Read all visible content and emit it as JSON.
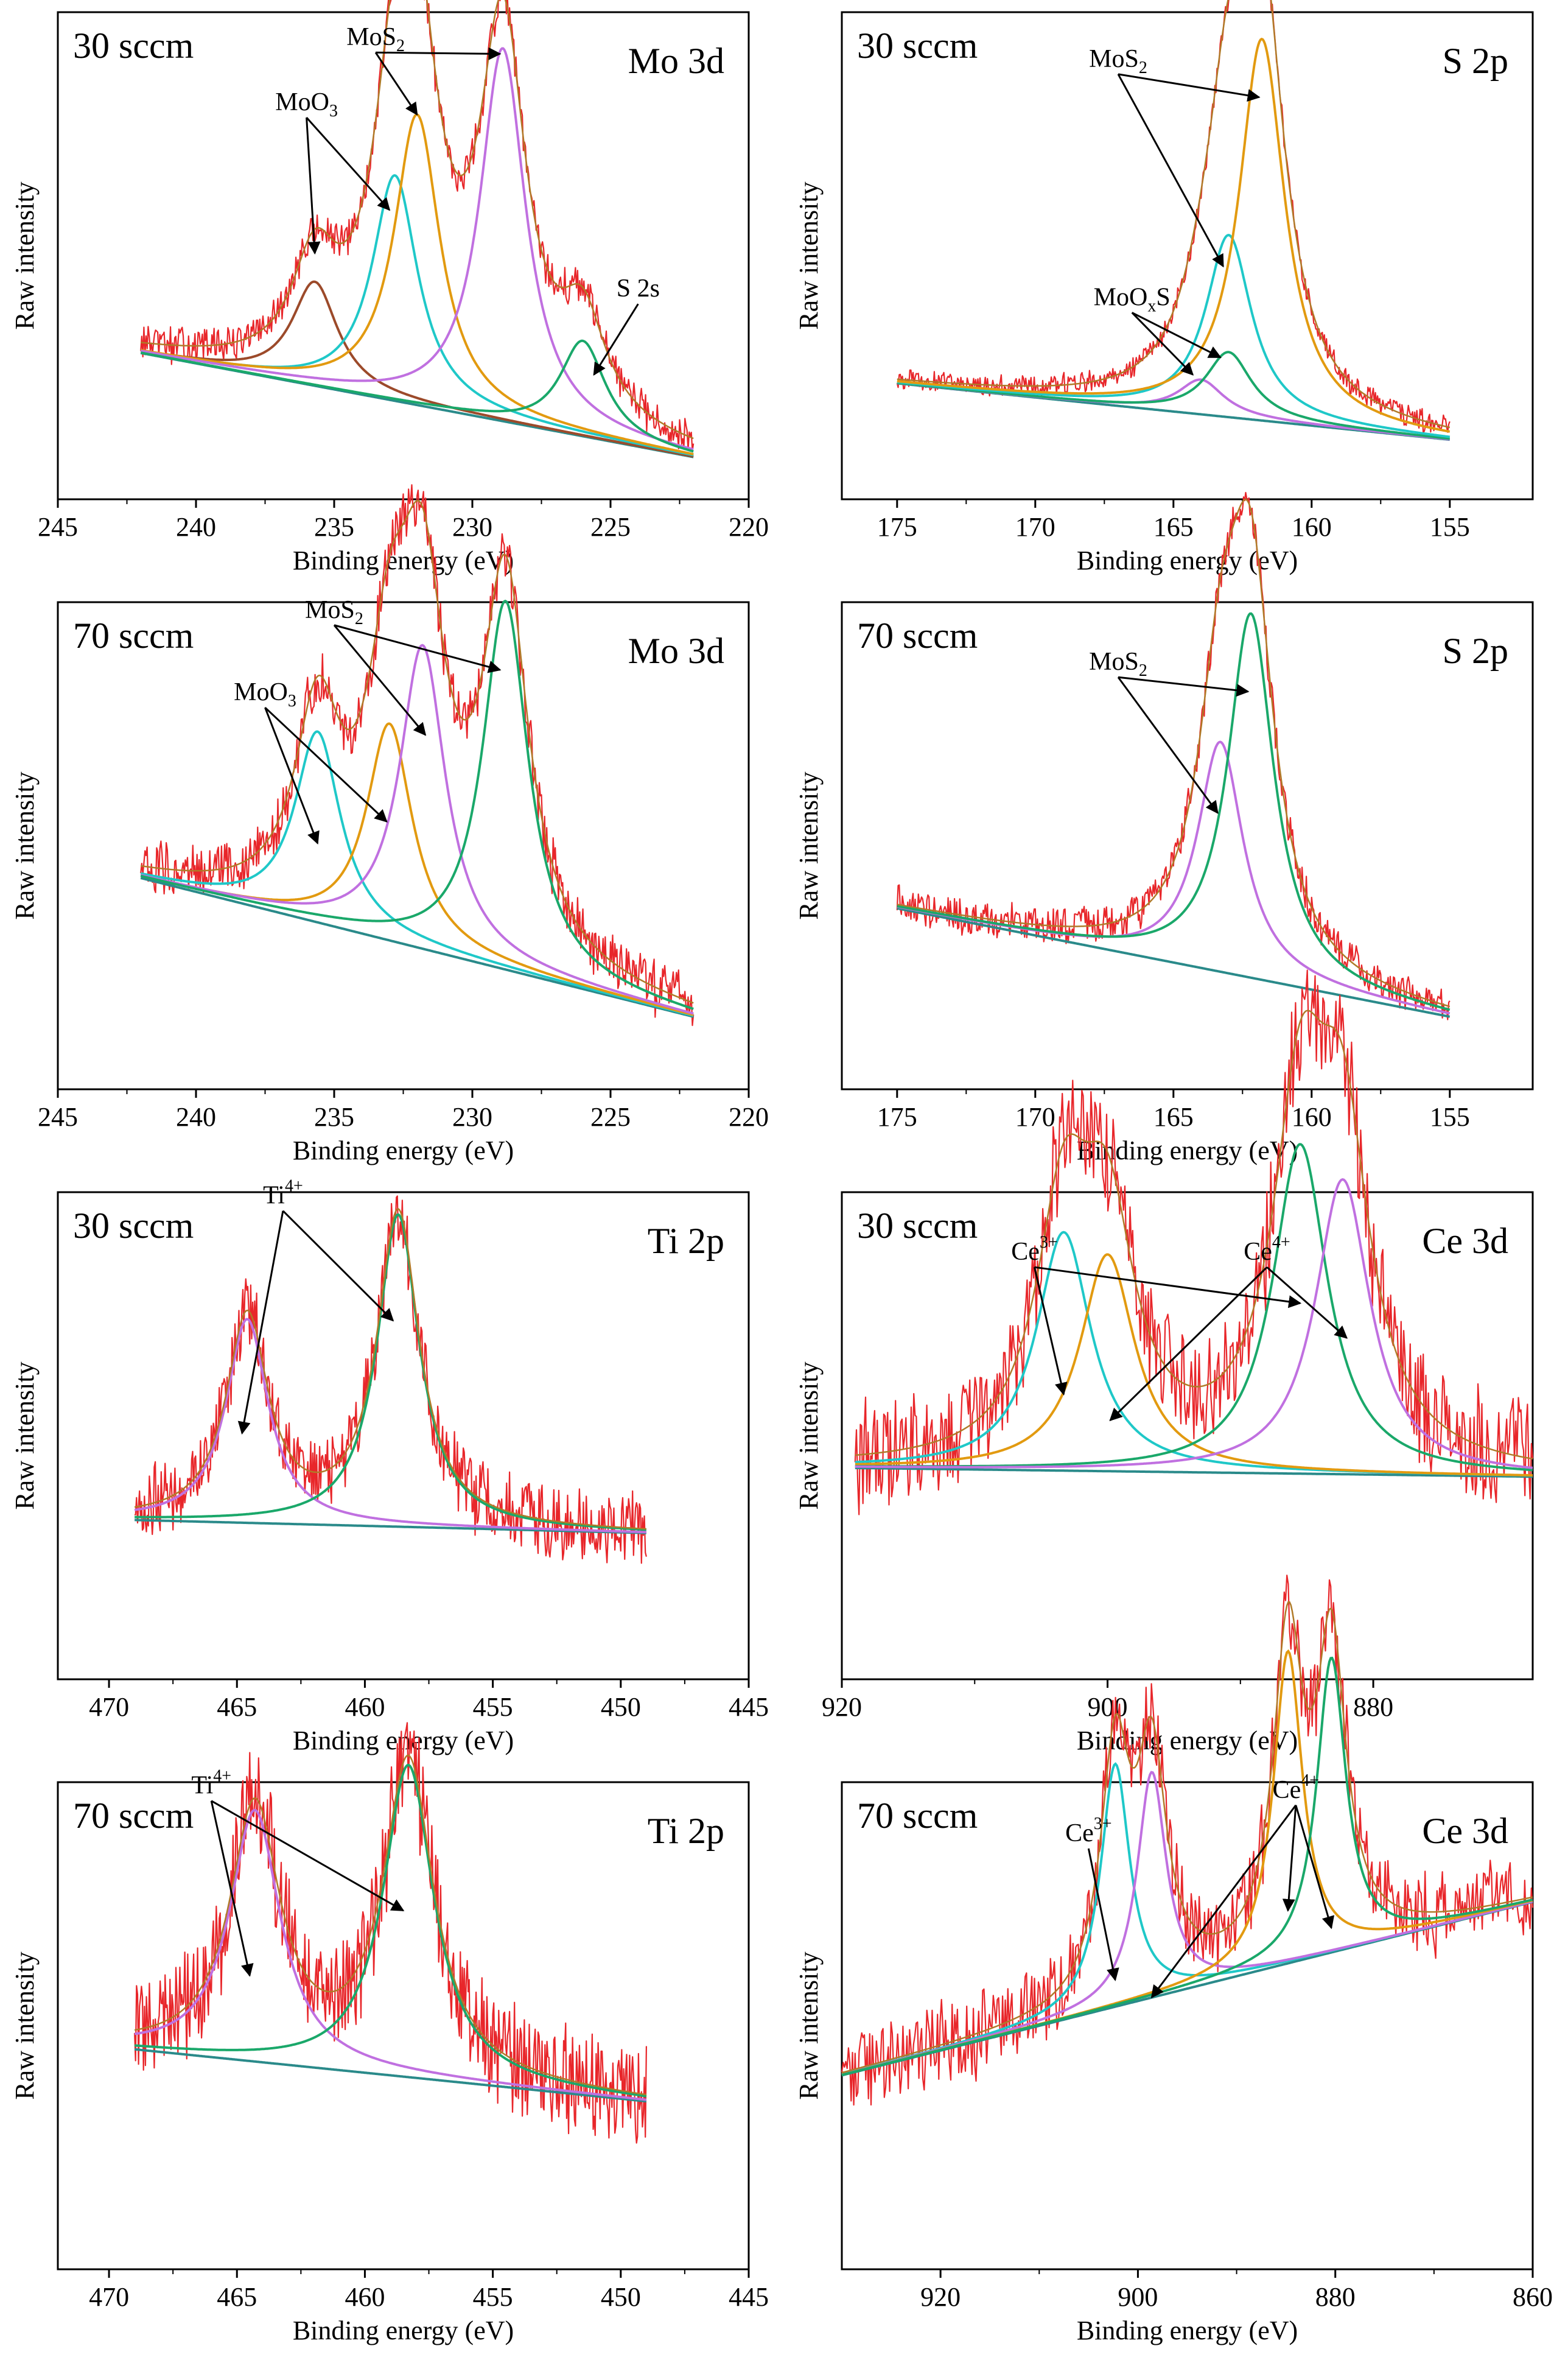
{
  "figure": {
    "background": "#ffffff",
    "colors": {
      "raw": "#e8262a",
      "envelope": "#b07a28",
      "orange": "#e29a10",
      "cyan": "#1fc8c8",
      "purple": "#c070e0",
      "green": "#1aa86a",
      "brown": "#9c4a2a",
      "background": "#7a6a3a",
      "teal": "#2a8a8a"
    }
  },
  "chart_data": [
    {
      "id": "mo3d-30",
      "type": "line",
      "title": "Mo 3d",
      "condition": "30 sccm",
      "xlabel": "Binding energy (eV)",
      "ylabel": "Raw intensity",
      "xlim": [
        245,
        220
      ],
      "xticks": [
        245,
        240,
        235,
        230,
        225,
        220
      ],
      "xrange_data": [
        242,
        222
      ],
      "noise": 0.03,
      "baseline": {
        "start": 0.27,
        "end": 0.03
      },
      "components": [
        {
          "name": "MoO3",
          "color": "brown",
          "center": 235.7,
          "amp": 0.24,
          "width": 1.0
        },
        {
          "name": "MoO3",
          "color": "cyan",
          "center": 232.8,
          "amp": 0.52,
          "width": 1.0
        },
        {
          "name": "MoS2",
          "color": "orange",
          "center": 232.0,
          "amp": 0.67,
          "width": 1.0
        },
        {
          "name": "MoS2",
          "color": "purple",
          "center": 228.9,
          "amp": 0.86,
          "width": 1.0
        },
        {
          "name": "S 2s",
          "color": "green",
          "center": 226.0,
          "amp": 0.22,
          "width": 1.0
        }
      ],
      "annotations": [
        {
          "text": "MoS",
          "sub": "2",
          "tx": 233.5,
          "ty": 0.98,
          "arrows": [
            [
              232.0,
              0.82
            ],
            [
              229.0,
              0.96
            ]
          ]
        },
        {
          "text": "MoO",
          "sub": "3",
          "tx": 236.0,
          "ty": 0.83,
          "arrows": [
            [
              235.7,
              0.5
            ],
            [
              233.0,
              0.6
            ]
          ]
        },
        {
          "text": "S 2s",
          "tx": 224.0,
          "ty": 0.4,
          "arrows": [
            [
              225.6,
              0.22
            ]
          ]
        }
      ]
    },
    {
      "id": "s2p-30",
      "type": "line",
      "title": "S 2p",
      "condition": "30 sccm",
      "xlabel": "Binding energy (eV)",
      "ylabel": "Raw intensity",
      "xlim": [
        177,
        152
      ],
      "xticks": [
        175,
        170,
        165,
        160,
        155
      ],
      "xrange_data": [
        175,
        155
      ],
      "noise": 0.018,
      "baseline": {
        "start": 0.2,
        "end": 0.07
      },
      "components": [
        {
          "name": "MoOxS",
          "color": "purple",
          "center": 164.0,
          "amp": 0.08,
          "width": 1.0
        },
        {
          "name": "MoOxS",
          "color": "green",
          "center": 163.0,
          "amp": 0.15,
          "width": 1.0
        },
        {
          "name": "MoS2",
          "color": "cyan",
          "center": 163.0,
          "amp": 0.42,
          "width": 1.0
        },
        {
          "name": "MoS2",
          "color": "orange",
          "center": 161.8,
          "amp": 0.88,
          "width": 1.0
        }
      ],
      "annotations": [
        {
          "text": "MoS",
          "sub": "2",
          "tx": 167.0,
          "ty": 0.93,
          "arrows": [
            [
              161.9,
              0.86
            ],
            [
              163.2,
              0.47
            ]
          ]
        },
        {
          "text": "MoO",
          "sub": "x",
          "extra": "S",
          "tx": 166.5,
          "ty": 0.38,
          "arrows": [
            [
              164.3,
              0.22
            ],
            [
              163.3,
              0.26
            ]
          ]
        }
      ]
    },
    {
      "id": "mo3d-70",
      "type": "line",
      "title": "Mo 3d",
      "condition": "70 sccm",
      "xlabel": "Binding energy (eV)",
      "ylabel": "Raw intensity",
      "xlim": [
        245,
        220
      ],
      "xticks": [
        245,
        240,
        235,
        230,
        225,
        220
      ],
      "xrange_data": [
        242,
        222
      ],
      "noise": 0.045,
      "baseline": {
        "start": 0.42,
        "end": 0.1
      },
      "components": [
        {
          "name": "MoO3",
          "color": "cyan",
          "center": 235.6,
          "amp": 0.44,
          "width": 1.0
        },
        {
          "name": "MoO3",
          "color": "orange",
          "center": 233.0,
          "amp": 0.5,
          "width": 1.0
        },
        {
          "name": "MoS2",
          "color": "purple",
          "center": 231.8,
          "amp": 0.7,
          "width": 1.0
        },
        {
          "name": "MoS2",
          "color": "green",
          "center": 228.8,
          "amp": 0.85,
          "width": 1.0
        }
      ],
      "annotations": [
        {
          "text": "MoS",
          "sub": "2",
          "tx": 235.0,
          "ty": 1.02,
          "arrows": [
            [
              231.7,
              0.75
            ],
            [
              229.0,
              0.9
            ]
          ]
        },
        {
          "text": "MoO",
          "sub": "3",
          "tx": 237.5,
          "ty": 0.83,
          "arrows": [
            [
              235.6,
              0.5
            ],
            [
              233.1,
              0.55
            ]
          ]
        }
      ]
    },
    {
      "id": "s2p-70",
      "type": "line",
      "title": "S 2p",
      "condition": "70 sccm",
      "xlabel": "Binding energy (eV)",
      "ylabel": "Raw intensity",
      "xlim": [
        177,
        152
      ],
      "xticks": [
        175,
        170,
        165,
        160,
        155
      ],
      "xrange_data": [
        175,
        155
      ],
      "noise": 0.03,
      "baseline": {
        "start": 0.35,
        "end": 0.1
      },
      "components": [
        {
          "name": "MoS2",
          "color": "purple",
          "center": 163.3,
          "amp": 0.53,
          "width": 1.0
        },
        {
          "name": "MoS2",
          "color": "green",
          "center": 162.2,
          "amp": 0.84,
          "width": 1.0
        }
      ],
      "annotations": [
        {
          "text": "MoS",
          "sub": "2",
          "tx": 167.0,
          "ty": 0.9,
          "arrows": [
            [
              163.4,
              0.57
            ],
            [
              162.3,
              0.85
            ]
          ]
        }
      ]
    },
    {
      "id": "ti2p-30",
      "type": "line",
      "title": "Ti 2p",
      "condition": "30 sccm",
      "xlabel": "Binding energy (eV)",
      "ylabel": "Raw intensity",
      "xlim": [
        472,
        445
      ],
      "xticks": [
        470,
        465,
        460,
        455,
        450,
        445
      ],
      "xrange_data": [
        469,
        449
      ],
      "noise": 0.06,
      "baseline": {
        "start": 0.3,
        "end": 0.27
      },
      "components": [
        {
          "name": "Ti4+",
          "color": "purple",
          "center": 464.6,
          "amp": 0.47,
          "width": 1.0
        },
        {
          "name": "Ti4+",
          "color": "green",
          "center": 458.7,
          "amp": 0.72,
          "width": 1.0
        }
      ],
      "annotations": [
        {
          "text": "Ti",
          "sup": "4+",
          "tx": 463.2,
          "ty": 1.03,
          "arrows": [
            [
              464.8,
              0.5
            ],
            [
              458.9,
              0.76
            ]
          ]
        }
      ]
    },
    {
      "id": "ce3d-30",
      "type": "line",
      "title": "Ce 3d",
      "condition": "30 sccm",
      "xlabel": "Binding energy (eV)",
      "ylabel": "Raw intensity",
      "xlim": [
        920,
        868
      ],
      "xticks": [
        920,
        900,
        880
      ],
      "xrange_data": [
        919,
        868
      ],
      "noise": 0.09,
      "baseline": {
        "start": 0.42,
        "end": 0.4
      },
      "components": [
        {
          "name": "Ce3+",
          "color": "cyan",
          "center": 903.3,
          "amp": 0.55,
          "width": 2.5
        },
        {
          "name": "Ce4+",
          "color": "orange",
          "center": 900.0,
          "amp": 0.5,
          "width": 2.5
        },
        {
          "name": "Ce3+",
          "color": "green",
          "center": 885.5,
          "amp": 0.76,
          "width": 2.5
        },
        {
          "name": "Ce4+",
          "color": "purple",
          "center": 882.3,
          "amp": 0.68,
          "width": 2.5
        }
      ],
      "annotations": [
        {
          "text": "Ce",
          "sup": "3+",
          "tx": 905.5,
          "ty": 0.9,
          "arrows": [
            [
              903.3,
              0.59
            ],
            [
              885.5,
              0.8
            ]
          ]
        },
        {
          "text": "Ce",
          "sup": "4+",
          "tx": 888.0,
          "ty": 0.9,
          "arrows": [
            [
              899.8,
              0.53
            ],
            [
              882.0,
              0.72
            ]
          ]
        }
      ]
    },
    {
      "id": "ti2p-70",
      "type": "line",
      "title": "Ti 2p",
      "condition": "70 sccm",
      "xlabel": "Binding energy (eV)",
      "ylabel": "Raw intensity",
      "xlim": [
        472,
        445
      ],
      "xticks": [
        470,
        465,
        460,
        455,
        450,
        445
      ],
      "xrange_data": [
        469,
        449
      ],
      "noise": 0.09,
      "baseline": {
        "start": 0.44,
        "end": 0.32
      },
      "components": [
        {
          "name": "Ti4+",
          "color": "purple",
          "center": 464.3,
          "amp": 0.58,
          "width": 1.2
        },
        {
          "name": "Ti4+",
          "color": "green",
          "center": 458.3,
          "amp": 0.72,
          "width": 1.2
        }
      ],
      "annotations": [
        {
          "text": "Ti",
          "sup": "4+",
          "tx": 466.0,
          "ty": 1.03,
          "arrows": [
            [
              464.5,
              0.61
            ],
            [
              458.5,
              0.76
            ]
          ]
        }
      ]
    },
    {
      "id": "ce3d-70",
      "type": "line",
      "title": "Ce 3d",
      "condition": "70 sccm",
      "xlabel": "Binding energy (eV)",
      "ylabel": "Raw intensity",
      "xlim": [
        930,
        860
      ],
      "xticks": [
        920,
        900,
        880,
        860
      ],
      "xrange_data": [
        930,
        860
      ],
      "noise": 0.07,
      "baseline": {
        "start": 0.38,
        "end": 0.78
      },
      "components": [
        {
          "name": "Ce3+",
          "color": "cyan",
          "center": 902.3,
          "amp": 0.56,
          "width": 1.8
        },
        {
          "name": "Ce4+",
          "color": "purple",
          "center": 898.6,
          "amp": 0.52,
          "width": 1.8
        },
        {
          "name": "Ce4+",
          "color": "orange",
          "center": 884.8,
          "amp": 0.72,
          "width": 1.8
        },
        {
          "name": "Ce4+",
          "color": "green",
          "center": 880.4,
          "amp": 0.68,
          "width": 1.8
        }
      ],
      "annotations": [
        {
          "text": "Ce",
          "sup": "3+",
          "tx": 905.0,
          "ty": 0.92,
          "arrows": [
            [
              902.3,
              0.6
            ]
          ]
        },
        {
          "text": "Ce",
          "sup": "4+",
          "tx": 884.0,
          "ty": 1.02,
          "arrows": [
            [
              898.6,
              0.56
            ],
            [
              884.8,
              0.76
            ],
            [
              880.4,
              0.72
            ]
          ]
        }
      ]
    }
  ]
}
